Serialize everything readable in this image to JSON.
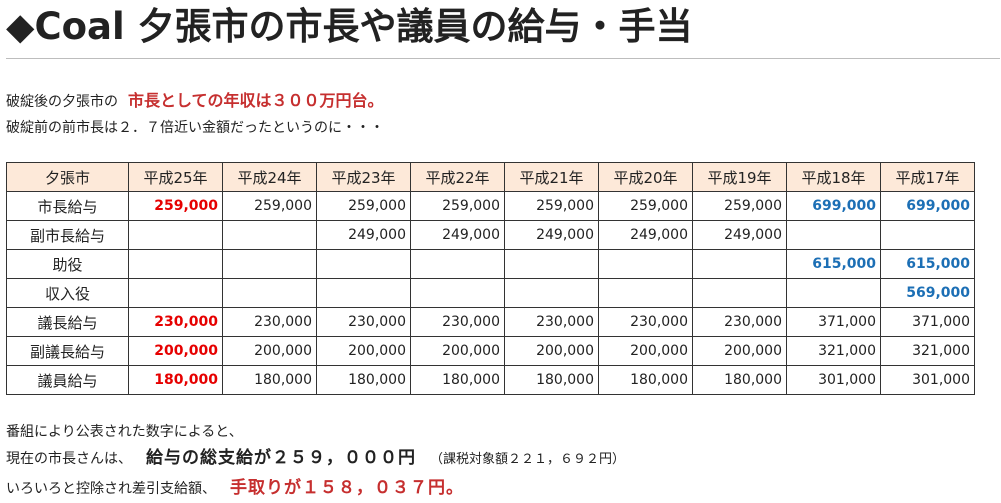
{
  "header": {
    "title": "◆Coal 夕張市の市長や議員の給与・手当"
  },
  "intro": {
    "line1_prefix": "破綻後の夕張市の",
    "line1_highlight": "市長としての年収は３００万円台。",
    "line2": "破綻前の前市長は２．７倍近い金額だったというのに・・・"
  },
  "table": {
    "headers": [
      "夕張市",
      "平成25年",
      "平成24年",
      "平成23年",
      "平成22年",
      "平成21年",
      "平成20年",
      "平成19年",
      "平成18年",
      "平成17年"
    ],
    "rows": [
      {
        "label": "市長給与",
        "values": [
          "259,000",
          "259,000",
          "259,000",
          "259,000",
          "259,000",
          "259,000",
          "259,000",
          "699,000",
          "699,000"
        ]
      },
      {
        "label": "副市長給与",
        "values": [
          "",
          "",
          "249,000",
          "249,000",
          "249,000",
          "249,000",
          "249,000",
          "",
          ""
        ]
      },
      {
        "label": "助役",
        "values": [
          "",
          "",
          "",
          "",
          "",
          "",
          "",
          "615,000",
          "615,000"
        ]
      },
      {
        "label": "収入役",
        "values": [
          "",
          "",
          "",
          "",
          "",
          "",
          "",
          "",
          "569,000"
        ]
      },
      {
        "label": "議長給与",
        "values": [
          "230,000",
          "230,000",
          "230,000",
          "230,000",
          "230,000",
          "230,000",
          "230,000",
          "371,000",
          "371,000"
        ]
      },
      {
        "label": "副議長給与",
        "values": [
          "200,000",
          "200,000",
          "200,000",
          "200,000",
          "200,000",
          "200,000",
          "200,000",
          "321,000",
          "321,000"
        ]
      },
      {
        "label": "議員給与",
        "values": [
          "180,000",
          "180,000",
          "180,000",
          "180,000",
          "180,000",
          "180,000",
          "180,000",
          "301,000",
          "301,000"
        ]
      }
    ]
  },
  "footer": {
    "line1": "番組により公表された数字によると、",
    "line2_prefix": "現在の市長さんは、",
    "line2_strong": "給与の総支給が２５９，０００円",
    "line2_note": "（課税対象額２２１，６９２円）",
    "line3_prefix": "いろいろと控除され差引支給額、",
    "line3_strong": "手取りが１５８，０３７円。"
  },
  "colors": {
    "header_bg": "#fde9d9",
    "red_value": "#e60000",
    "blue_value": "#1c6fb5",
    "highlight_red": "#c62f2f"
  }
}
